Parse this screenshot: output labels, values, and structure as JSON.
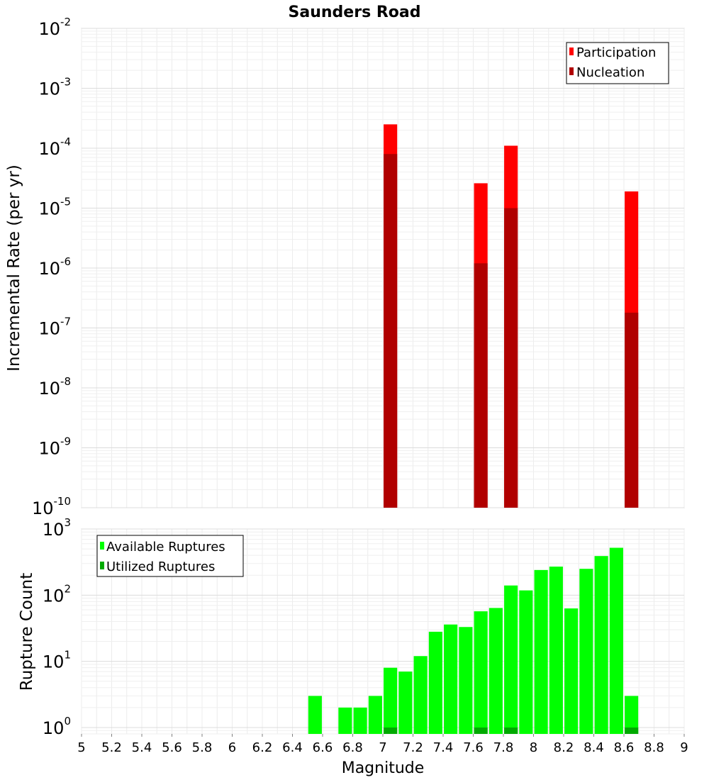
{
  "chart_data": [
    {
      "type": "bar",
      "title": "Saunders Road",
      "xlabel": "",
      "ylabel": "Incremental Rate (per yr)",
      "yscale": "log",
      "xlim": [
        5,
        9
      ],
      "ylim": [
        1e-10,
        0.01
      ],
      "y_ticks": [
        {
          "base": "10",
          "exp": "-2",
          "value": 0.01
        },
        {
          "base": "10",
          "exp": "-3",
          "value": 0.001
        },
        {
          "base": "10",
          "exp": "-4",
          "value": 0.0001
        },
        {
          "base": "10",
          "exp": "-5",
          "value": 1e-05
        },
        {
          "base": "10",
          "exp": "-6",
          "value": 1e-06
        },
        {
          "base": "10",
          "exp": "-7",
          "value": 1e-07
        },
        {
          "base": "10",
          "exp": "-8",
          "value": 1e-08
        },
        {
          "base": "10",
          "exp": "-9",
          "value": 1e-09
        },
        {
          "base": "10",
          "exp": "-10",
          "value": 1e-10
        }
      ],
      "bar_width": 0.09,
      "grid": true,
      "legend_position": "top-right",
      "series": [
        {
          "name": "Participation",
          "color": "#ff0000",
          "points": [
            {
              "x": 7.05,
              "y": 0.00025
            },
            {
              "x": 7.65,
              "y": 2.6e-05
            },
            {
              "x": 7.85,
              "y": 0.00011
            },
            {
              "x": 8.65,
              "y": 1.9e-05
            }
          ]
        },
        {
          "name": "Nucleation",
          "color": "#b00000",
          "points": [
            {
              "x": 7.05,
              "y": 8e-05
            },
            {
              "x": 7.65,
              "y": 1.2e-06
            },
            {
              "x": 7.85,
              "y": 1e-05
            },
            {
              "x": 8.65,
              "y": 1.8e-07
            }
          ]
        }
      ]
    },
    {
      "type": "bar",
      "title": "",
      "xlabel": "Magnitude",
      "ylabel": "Rupture Count",
      "yscale": "log",
      "xlim": [
        5,
        9
      ],
      "ylim": [
        0.8,
        1000
      ],
      "y_ticks": [
        {
          "base": "10",
          "exp": "3",
          "value": 1000
        },
        {
          "base": "10",
          "exp": "2",
          "value": 100
        },
        {
          "base": "10",
          "exp": "1",
          "value": 10
        },
        {
          "base": "10",
          "exp": "0",
          "value": 1
        }
      ],
      "x_ticks": [
        "5",
        "5.2",
        "5.4",
        "5.6",
        "5.8",
        "6",
        "6.2",
        "6.4",
        "6.6",
        "6.8",
        "7",
        "7.2",
        "7.4",
        "7.6",
        "7.8",
        "8",
        "8.2",
        "8.4",
        "8.6",
        "8.8",
        "9"
      ],
      "bar_width": 0.09,
      "grid": true,
      "legend_position": "top-left",
      "series": [
        {
          "name": "Available Ruptures",
          "color": "#00ff00",
          "points": [
            {
              "x": 6.55,
              "y": 3
            },
            {
              "x": 6.75,
              "y": 2
            },
            {
              "x": 6.85,
              "y": 2
            },
            {
              "x": 6.95,
              "y": 3
            },
            {
              "x": 7.05,
              "y": 8
            },
            {
              "x": 7.15,
              "y": 7
            },
            {
              "x": 7.25,
              "y": 12
            },
            {
              "x": 7.35,
              "y": 28
            },
            {
              "x": 7.45,
              "y": 36
            },
            {
              "x": 7.55,
              "y": 33
            },
            {
              "x": 7.65,
              "y": 57
            },
            {
              "x": 7.75,
              "y": 64
            },
            {
              "x": 7.85,
              "y": 140
            },
            {
              "x": 7.95,
              "y": 118
            },
            {
              "x": 8.05,
              "y": 240
            },
            {
              "x": 8.15,
              "y": 270
            },
            {
              "x": 8.25,
              "y": 63
            },
            {
              "x": 8.35,
              "y": 250
            },
            {
              "x": 8.45,
              "y": 390
            },
            {
              "x": 8.55,
              "y": 520
            },
            {
              "x": 8.65,
              "y": 3
            }
          ]
        },
        {
          "name": "Utilized Ruptures",
          "color": "#00aa00",
          "points": [
            {
              "x": 7.05,
              "y": 1
            },
            {
              "x": 7.65,
              "y": 1
            },
            {
              "x": 7.85,
              "y": 1
            },
            {
              "x": 8.65,
              "y": 1
            }
          ]
        }
      ]
    }
  ]
}
